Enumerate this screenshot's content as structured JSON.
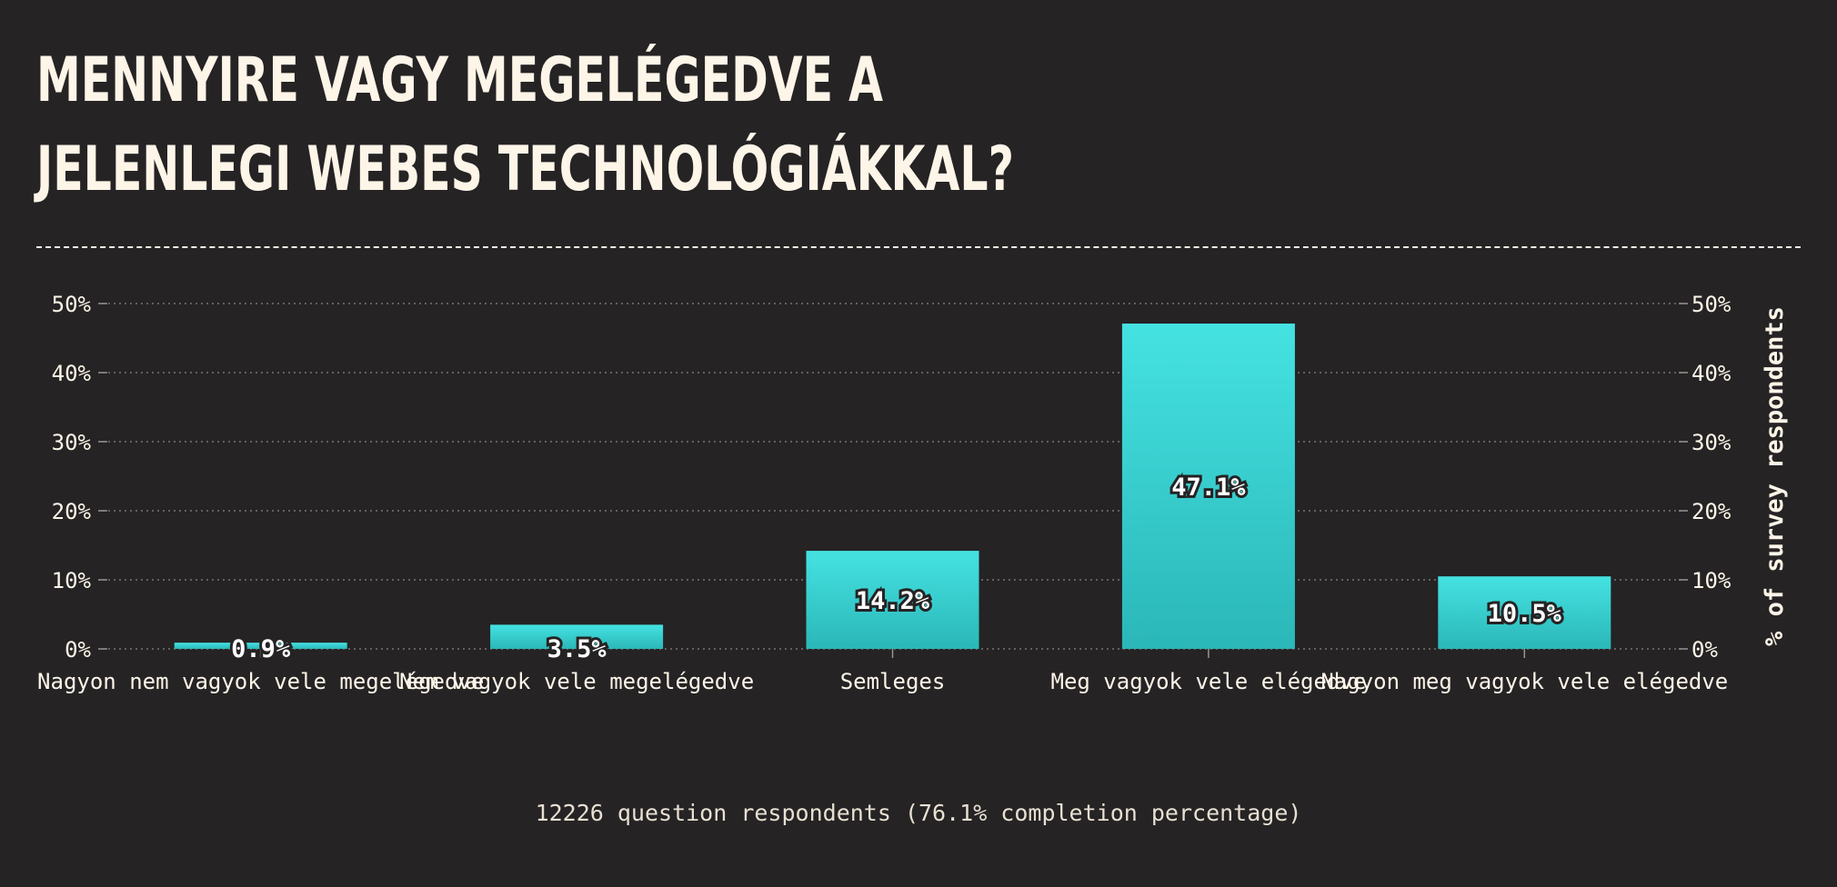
{
  "page": {
    "title": "Mennyire vagy megelégedve a jelenlegi webes technológiákkal?",
    "footer": "12226 question respondents (76.1% completion percentage)"
  },
  "colors": {
    "background": "#252324",
    "text": "#fdf5e8",
    "bar_top": "#45e2e2",
    "bar_bottom": "#2bb7b8"
  },
  "chart_data": {
    "type": "bar",
    "title": "",
    "xlabel": "",
    "ylabel": "% of survey respondents",
    "ylim": [
      0,
      50
    ],
    "yticks": [
      "0%",
      "10%",
      "20%",
      "30%",
      "40%",
      "50%"
    ],
    "grid": true,
    "categories": [
      "Nagyon nem vagyok vele megelégedve",
      "Nem vagyok vele megelégedve",
      "Semleges",
      "Meg vagyok vele elégedve",
      "Nagyon meg vagyok vele elégedve"
    ],
    "values": [
      0.9,
      3.5,
      14.2,
      47.1,
      10.5
    ],
    "value_labels": [
      "0.9%",
      "3.5%",
      "14.2%",
      "47.1%",
      "10.5%"
    ]
  }
}
